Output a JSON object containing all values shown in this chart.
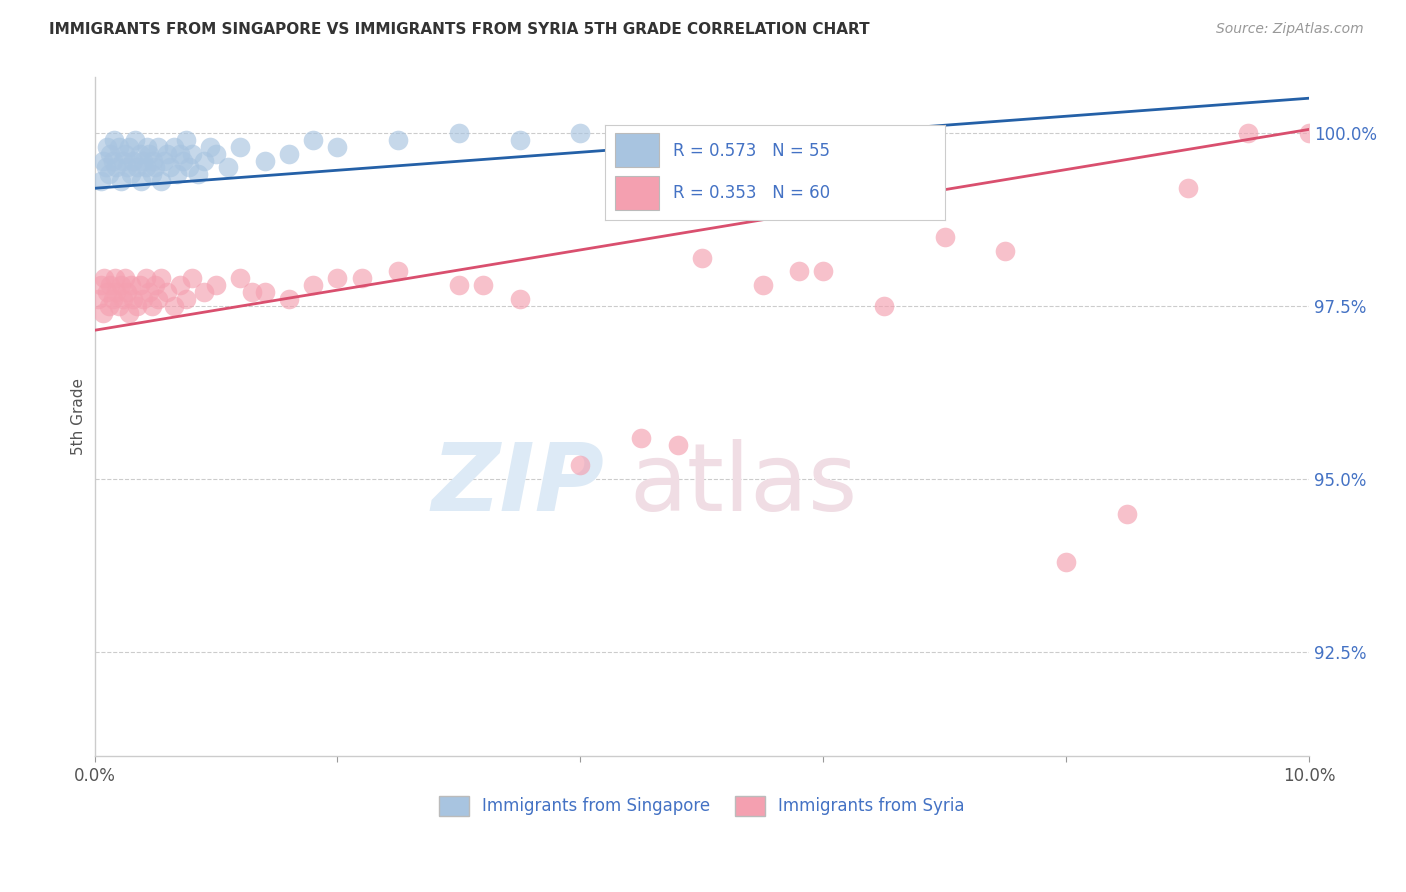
{
  "title": "IMMIGRANTS FROM SINGAPORE VS IMMIGRANTS FROM SYRIA 5TH GRADE CORRELATION CHART",
  "source": "Source: ZipAtlas.com",
  "ylabel": "5th Grade",
  "xlim": [
    0.0,
    10.0
  ],
  "ylim": [
    91.0,
    100.8
  ],
  "yticks": [
    92.5,
    95.0,
    97.5,
    100.0
  ],
  "ytick_labels": [
    "92.5%",
    "95.0%",
    "97.5%",
    "100.0%"
  ],
  "xticks": [
    0.0,
    2.0,
    4.0,
    6.0,
    8.0,
    10.0
  ],
  "xtick_labels": [
    "0.0%",
    "",
    "",
    "",
    "",
    "10.0%"
  ],
  "legend_bottom_singapore": "Immigrants from Singapore",
  "legend_bottom_syria": "Immigrants from Syria",
  "singapore_color": "#a8c4e0",
  "singapore_line_color": "#2460a7",
  "syria_color": "#f4a0b0",
  "syria_line_color": "#d94f6e",
  "sg_R": 0.573,
  "sg_N": 55,
  "sy_R": 0.353,
  "sy_N": 60,
  "sg_x": [
    0.05,
    0.07,
    0.09,
    0.1,
    0.12,
    0.13,
    0.15,
    0.16,
    0.18,
    0.2,
    0.22,
    0.23,
    0.25,
    0.27,
    0.28,
    0.3,
    0.32,
    0.33,
    0.35,
    0.37,
    0.38,
    0.4,
    0.42,
    0.43,
    0.45,
    0.47,
    0.48,
    0.5,
    0.52,
    0.55,
    0.57,
    0.6,
    0.62,
    0.65,
    0.68,
    0.7,
    0.73,
    0.75,
    0.78,
    0.8,
    0.85,
    0.9,
    0.95,
    1.0,
    1.1,
    1.2,
    1.4,
    1.6,
    1.8,
    2.0,
    2.5,
    3.0,
    3.5,
    4.0,
    4.5
  ],
  "sg_y": [
    99.3,
    99.6,
    99.5,
    99.8,
    99.4,
    99.7,
    99.6,
    99.9,
    99.5,
    99.8,
    99.3,
    99.6,
    99.7,
    99.5,
    99.8,
    99.4,
    99.6,
    99.9,
    99.5,
    99.7,
    99.3,
    99.6,
    99.5,
    99.8,
    99.7,
    99.4,
    99.6,
    99.5,
    99.8,
    99.3,
    99.6,
    99.7,
    99.5,
    99.8,
    99.4,
    99.7,
    99.6,
    99.9,
    99.5,
    99.7,
    99.4,
    99.6,
    99.8,
    99.7,
    99.5,
    99.8,
    99.6,
    99.7,
    99.9,
    99.8,
    99.9,
    100.0,
    99.9,
    100.0,
    99.9
  ],
  "sy_x": [
    0.03,
    0.05,
    0.07,
    0.08,
    0.1,
    0.12,
    0.13,
    0.15,
    0.17,
    0.18,
    0.2,
    0.22,
    0.23,
    0.25,
    0.27,
    0.28,
    0.3,
    0.32,
    0.35,
    0.37,
    0.4,
    0.42,
    0.45,
    0.47,
    0.5,
    0.52,
    0.55,
    0.6,
    0.65,
    0.7,
    0.75,
    0.8,
    0.9,
    1.0,
    1.2,
    1.4,
    1.6,
    1.8,
    2.0,
    2.5,
    3.0,
    3.5,
    4.0,
    4.5,
    5.0,
    5.5,
    6.0,
    6.5,
    7.0,
    7.5,
    8.0,
    8.5,
    9.0,
    9.5,
    10.0,
    1.3,
    2.2,
    3.2,
    4.8,
    5.8
  ],
  "sy_y": [
    97.6,
    97.8,
    97.4,
    97.9,
    97.7,
    97.5,
    97.8,
    97.6,
    97.9,
    97.7,
    97.5,
    97.8,
    97.6,
    97.9,
    97.7,
    97.4,
    97.8,
    97.6,
    97.5,
    97.8,
    97.6,
    97.9,
    97.7,
    97.5,
    97.8,
    97.6,
    97.9,
    97.7,
    97.5,
    97.8,
    97.6,
    97.9,
    97.7,
    97.8,
    97.9,
    97.7,
    97.6,
    97.8,
    97.9,
    98.0,
    97.8,
    97.6,
    95.2,
    95.6,
    98.2,
    97.8,
    98.0,
    97.5,
    98.5,
    98.3,
    93.8,
    94.5,
    99.2,
    100.0,
    100.0,
    97.7,
    97.9,
    97.8,
    95.5,
    98.0
  ]
}
